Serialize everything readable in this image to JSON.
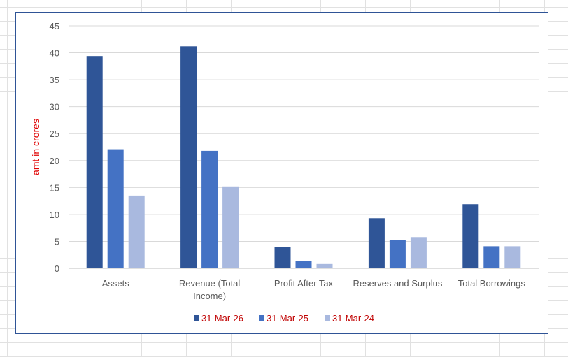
{
  "chart_data": {
    "type": "bar",
    "title": "",
    "xlabel": "",
    "ylabel": "amt in crores",
    "ylim": [
      0,
      45
    ],
    "yticks": [
      0,
      5,
      10,
      15,
      20,
      25,
      30,
      35,
      40,
      45
    ],
    "categories": [
      "Assets",
      "Revenue (Total Income)",
      "Profit After Tax",
      "Reserves and Surplus",
      "Total Borrowings"
    ],
    "category_label_lines": [
      [
        "Assets"
      ],
      [
        "Revenue (Total",
        "Income)"
      ],
      [
        "Profit After Tax"
      ],
      [
        "Reserves and Surplus"
      ],
      [
        "Total Borrowings"
      ]
    ],
    "series": [
      {
        "name": "31-Mar-26",
        "color": "#2f5597",
        "values": [
          39.4,
          41.2,
          4.0,
          9.3,
          11.9
        ]
      },
      {
        "name": "31-Mar-25",
        "color": "#4472c4",
        "values": [
          22.1,
          21.8,
          1.3,
          5.2,
          4.1
        ]
      },
      {
        "name": "31-Mar-24",
        "color": "#a9b9df",
        "values": [
          13.5,
          15.2,
          0.8,
          5.8,
          4.1
        ]
      }
    ],
    "grid": true,
    "legend_position": "bottom",
    "legend_text_color": "#c00000",
    "ylabel_color": "#e00000"
  }
}
